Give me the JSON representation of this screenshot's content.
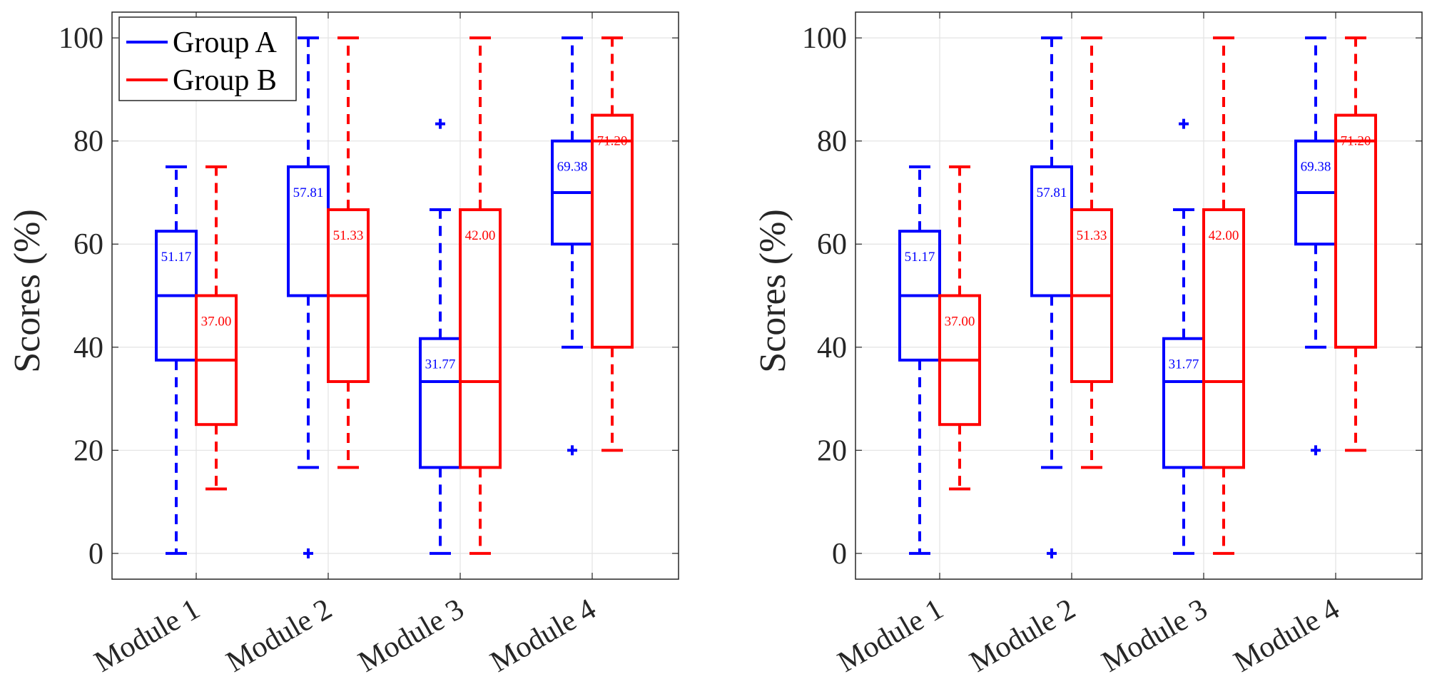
{
  "chart_data": [
    {
      "type": "box",
      "ylabel": "Scores (%)",
      "ylim": [
        -5,
        105
      ],
      "yticks": [
        0,
        20,
        40,
        60,
        80,
        100
      ],
      "grid": true,
      "legend": {
        "placement": "top-left",
        "entries": [
          "Group A",
          "Group B"
        ]
      },
      "categories": [
        "Module 1",
        "Module 2",
        "Module 3",
        "Module 4"
      ],
      "series": [
        {
          "name": "Group A",
          "color": "#0000ff",
          "boxes": [
            {
              "min": 0,
              "q1": 37.5,
              "median": 50,
              "q3": 62.5,
              "max": 75,
              "mean_label": "51.17",
              "outliers": []
            },
            {
              "min": 16.67,
              "q1": 50,
              "median": 50,
              "q3": 75,
              "max": 100,
              "mean_label": "57.81",
              "outliers": [
                0
              ]
            },
            {
              "min": 0,
              "q1": 16.67,
              "median": 33.33,
              "q3": 41.67,
              "max": 66.67,
              "mean_label": "31.77",
              "outliers": [
                83.33
              ]
            },
            {
              "min": 40,
              "q1": 60,
              "median": 70,
              "q3": 80,
              "max": 100,
              "mean_label": "69.38",
              "outliers": [
                20
              ]
            }
          ]
        },
        {
          "name": "Group B",
          "color": "#ff0000",
          "boxes": [
            {
              "min": 12.5,
              "q1": 25,
              "median": 37.5,
              "q3": 50,
              "max": 75,
              "mean_label": "37.00",
              "outliers": []
            },
            {
              "min": 16.67,
              "q1": 33.33,
              "median": 50,
              "q3": 66.67,
              "max": 100,
              "mean_label": "51.33",
              "outliers": []
            },
            {
              "min": 0,
              "q1": 16.67,
              "median": 33.33,
              "q3": 66.67,
              "max": 100,
              "mean_label": "42.00",
              "outliers": []
            },
            {
              "min": 20,
              "q1": 40,
              "median": 80,
              "q3": 85,
              "max": 100,
              "mean_label": "71.20",
              "outliers": []
            }
          ]
        }
      ]
    },
    {
      "type": "box",
      "ylabel": "Scores (%)",
      "ylim": [
        -5,
        105
      ],
      "yticks": [
        0,
        20,
        40,
        60,
        80,
        100
      ],
      "grid": true,
      "categories": [
        "Module 1",
        "Module 2",
        "Module 3",
        "Module 4"
      ],
      "series": [
        {
          "color": "#0000ff",
          "boxes": [
            {
              "min": 0,
              "q1": 37.5,
              "median": 50,
              "q3": 62.5,
              "max": 75,
              "mean_label": "51.17",
              "outliers": []
            },
            {
              "min": 16.67,
              "q1": 50,
              "median": 50,
              "q3": 75,
              "max": 100,
              "mean_label": "57.81",
              "outliers": [
                0
              ]
            },
            {
              "min": 0,
              "q1": 16.67,
              "median": 33.33,
              "q3": 41.67,
              "max": 66.67,
              "mean_label": "31.77",
              "outliers": [
                83.33
              ]
            },
            {
              "min": 40,
              "q1": 60,
              "median": 70,
              "q3": 80,
              "max": 100,
              "mean_label": "69.38",
              "outliers": [
                20
              ]
            }
          ]
        },
        {
          "color": "#ff0000",
          "boxes": [
            {
              "min": 12.5,
              "q1": 25,
              "median": 37.5,
              "q3": 50,
              "max": 75,
              "mean_label": "37.00",
              "outliers": []
            },
            {
              "min": 16.67,
              "q1": 33.33,
              "median": 50,
              "q3": 66.67,
              "max": 100,
              "mean_label": "51.33",
              "outliers": []
            },
            {
              "min": 0,
              "q1": 16.67,
              "median": 33.33,
              "q3": 66.67,
              "max": 100,
              "mean_label": "42.00",
              "outliers": []
            },
            {
              "min": 20,
              "q1": 40,
              "median": 80,
              "q3": 85,
              "max": 100,
              "mean_label": "71.20",
              "outliers": []
            }
          ]
        }
      ]
    }
  ]
}
